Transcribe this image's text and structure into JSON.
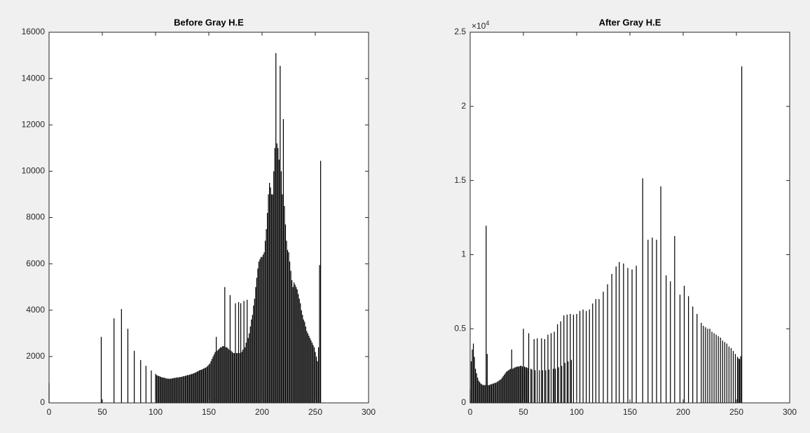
{
  "chart_data": [
    {
      "type": "bar",
      "title": "Before Gray H.E",
      "color": "#000000",
      "xlim": [
        0,
        300
      ],
      "xticks": [
        0,
        50,
        100,
        150,
        200,
        250,
        300
      ],
      "ylim": [
        0,
        16000
      ],
      "yticks": [
        0,
        2000,
        4000,
        6000,
        8000,
        10000,
        12000,
        14000,
        16000
      ],
      "x": [
        0,
        49,
        50,
        61,
        68,
        74,
        80,
        86,
        91,
        96,
        100,
        101,
        102,
        103,
        104,
        105,
        106,
        107,
        108,
        109,
        110,
        111,
        112,
        113,
        114,
        115,
        116,
        117,
        118,
        119,
        120,
        121,
        122,
        123,
        124,
        125,
        126,
        127,
        128,
        129,
        130,
        131,
        132,
        133,
        134,
        135,
        136,
        137,
        138,
        139,
        140,
        141,
        142,
        143,
        144,
        145,
        146,
        147,
        148,
        149,
        150,
        151,
        152,
        153,
        154,
        155,
        156,
        157,
        158,
        159,
        160,
        161,
        162,
        163,
        164,
        165,
        166,
        167,
        168,
        169,
        170,
        171,
        172,
        173,
        174,
        175,
        176,
        177,
        178,
        179,
        180,
        181,
        182,
        183,
        184,
        185,
        186,
        187,
        188,
        189,
        190,
        191,
        192,
        193,
        194,
        195,
        196,
        197,
        198,
        199,
        200,
        201,
        202,
        203,
        204,
        205,
        206,
        207,
        208,
        209,
        210,
        211,
        212,
        213,
        214,
        215,
        216,
        217,
        218,
        219,
        220,
        221,
        222,
        223,
        224,
        225,
        226,
        227,
        228,
        229,
        230,
        231,
        232,
        233,
        234,
        235,
        236,
        237,
        238,
        239,
        240,
        241,
        242,
        243,
        244,
        245,
        246,
        247,
        248,
        249,
        250,
        251,
        252,
        253,
        254,
        255
      ],
      "values": [
        850,
        2850,
        150,
        3650,
        4050,
        3200,
        2250,
        1850,
        1600,
        1400,
        1250,
        1200,
        1180,
        1150,
        1150,
        1120,
        1100,
        1100,
        1080,
        1080,
        1050,
        1050,
        1050,
        1030,
        1050,
        1050,
        1060,
        1070,
        1080,
        1080,
        1100,
        1100,
        1100,
        1120,
        1120,
        1130,
        1150,
        1150,
        1170,
        1180,
        1200,
        1200,
        1220,
        1230,
        1250,
        1260,
        1280,
        1300,
        1320,
        1350,
        1370,
        1400,
        1420,
        1430,
        1450,
        1480,
        1500,
        1520,
        1550,
        1600,
        1650,
        1700,
        1800,
        1900,
        2000,
        2100,
        2200,
        2850,
        2250,
        2300,
        2350,
        2400,
        2400,
        2450,
        2450,
        5000,
        2400,
        2400,
        2350,
        2300,
        4650,
        2250,
        2200,
        2150,
        2150,
        4300,
        2150,
        2150,
        4350,
        2150,
        4300,
        2200,
        2300,
        4400,
        2400,
        2600,
        4450,
        2800,
        3000,
        3300,
        3600,
        3800,
        4200,
        4500,
        5000,
        5400,
        5800,
        6100,
        6200,
        6300,
        6300,
        6400,
        6500,
        7000,
        7500,
        8200,
        9000,
        9500,
        9300,
        9000,
        9000,
        10000,
        11000,
        15100,
        11200,
        11000,
        10500,
        14550,
        10000,
        9000,
        12250,
        8500,
        7700,
        7000,
        6600,
        6500,
        6100,
        5700,
        5300,
        5000,
        5200,
        5100,
        5000,
        4900,
        4700,
        4500,
        4300,
        4000,
        3800,
        3600,
        3500,
        3300,
        3100,
        3000,
        2900,
        2800,
        2700,
        2600,
        2500,
        2400,
        2200,
        2000,
        1800,
        2400,
        5950,
        10450
      ]
    },
    {
      "type": "bar",
      "title": "After Gray H.E",
      "color": "#000000",
      "xlim": [
        0,
        300
      ],
      "xticks": [
        0,
        50,
        100,
        150,
        200,
        250,
        300
      ],
      "ylim": [
        0,
        25000
      ],
      "yticks": [
        0,
        {
          "value": 5000,
          "label": "0.5"
        },
        {
          "value": 10000,
          "label": "1"
        },
        {
          "value": 15000,
          "label": "1.5"
        },
        {
          "value": 20000,
          "label": "2"
        },
        {
          "value": 25000,
          "label": "2.5"
        }
      ],
      "y_exponent": {
        "base": "×10",
        "power": "4"
      },
      "x": [
        0,
        1,
        2,
        3,
        4,
        5,
        6,
        7,
        8,
        9,
        10,
        11,
        12,
        13,
        14,
        15,
        16,
        17,
        18,
        19,
        20,
        21,
        22,
        23,
        24,
        25,
        26,
        27,
        28,
        29,
        30,
        31,
        32,
        33,
        34,
        35,
        36,
        37,
        38,
        39,
        40,
        41,
        42,
        43,
        44,
        45,
        46,
        47,
        48,
        49,
        50,
        51,
        52,
        53,
        54,
        55,
        57,
        58,
        60,
        61,
        63,
        65,
        67,
        68,
        70,
        71,
        73,
        74,
        76,
        78,
        79,
        80,
        82,
        83,
        85,
        86,
        88,
        89,
        91,
        92,
        94,
        95,
        97,
        100,
        103,
        106,
        109,
        112,
        115,
        118,
        121,
        125,
        129,
        133,
        137,
        140,
        144,
        148,
        152,
        156,
        162,
        167,
        171,
        175,
        179,
        184,
        188,
        192,
        197,
        201,
        205,
        209,
        213,
        217,
        219,
        221,
        223,
        225,
        227,
        229,
        231,
        233,
        235,
        237,
        239,
        241,
        243,
        245,
        247,
        249,
        251,
        252,
        253,
        254,
        255
      ],
      "values": [
        900,
        2800,
        3600,
        4000,
        3100,
        2300,
        2000,
        1700,
        1500,
        1400,
        1300,
        1250,
        1200,
        1200,
        1200,
        11950,
        3300,
        1200,
        1200,
        1250,
        1250,
        1300,
        1300,
        1350,
        1350,
        1400,
        1450,
        1500,
        1550,
        1600,
        1700,
        1800,
        1900,
        2000,
        2100,
        2150,
        2200,
        2250,
        2300,
        3600,
        2300,
        2350,
        2400,
        2400,
        2450,
        2450,
        2450,
        2500,
        2500,
        2450,
        5000,
        2450,
        2400,
        2400,
        2350,
        4700,
        2300,
        2250,
        4300,
        2200,
        4350,
        2200,
        4350,
        2200,
        4300,
        2200,
        4600,
        2250,
        4700,
        2300,
        4800,
        2300,
        5300,
        2400,
        5500,
        2500,
        5900,
        2700,
        5950,
        2800,
        6000,
        2900,
        5950,
        6000,
        6200,
        6300,
        6200,
        6300,
        6700,
        7000,
        7000,
        7500,
        8000,
        8700,
        9200,
        9500,
        9400,
        9100,
        9000,
        9250,
        15150,
        11000,
        11150,
        11000,
        14600,
        8600,
        8200,
        11250,
        7300,
        7900,
        7200,
        6500,
        6000,
        5400,
        5200,
        5100,
        5000,
        5000,
        4800,
        4700,
        4600,
        4500,
        4400,
        4200,
        4100,
        4000,
        3800,
        3700,
        3500,
        3300,
        3100,
        3000,
        2950,
        3150,
        22700
      ]
    }
  ]
}
